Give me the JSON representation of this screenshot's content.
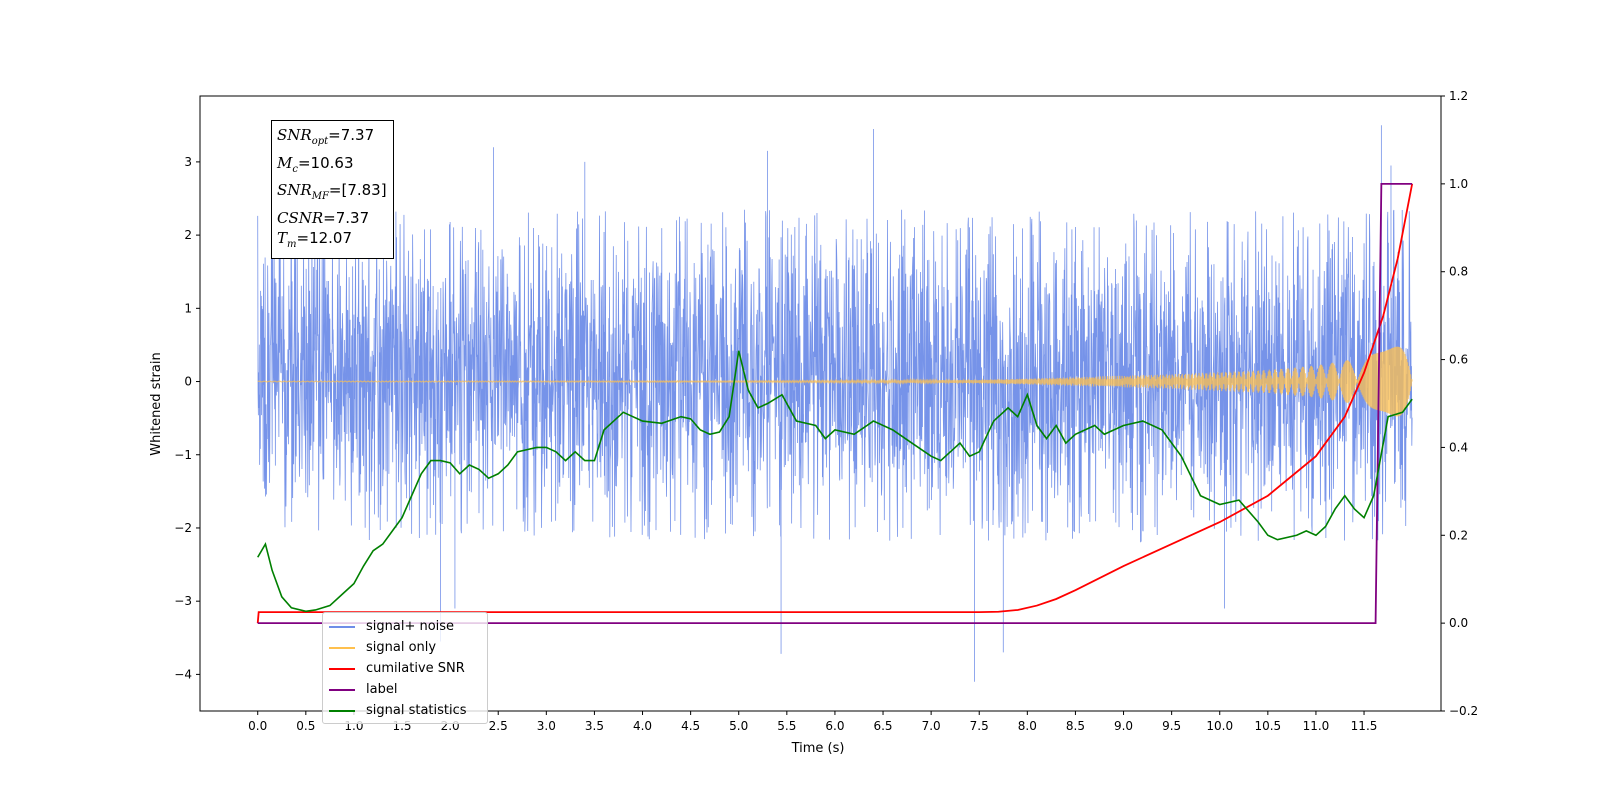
{
  "chart_data": {
    "type": "line",
    "title": "",
    "xlabel": "Time (s)",
    "ylabel": "Whitened strain",
    "xlim": [
      -0.6,
      12.3
    ],
    "ylim": [
      -4.5,
      3.9
    ],
    "ylim_right": [
      -0.2,
      1.2
    ],
    "x_ticks": [
      "0.0",
      "0.5",
      "1.0",
      "1.5",
      "2.0",
      "2.5",
      "3.0",
      "3.5",
      "4.0",
      "4.5",
      "5.0",
      "5.5",
      "6.0",
      "6.5",
      "7.0",
      "7.5",
      "8.0",
      "8.5",
      "9.0",
      "9.5",
      "10.0",
      "10.5",
      "11.0",
      "11.5"
    ],
    "y_ticks_left": [
      "3",
      "2",
      "1",
      "0",
      "−1",
      "−2",
      "−3",
      "−4"
    ],
    "y_ticks_right": [
      "1.2",
      "1.0",
      "0.8",
      "0.6",
      "0.4",
      "0.2",
      "0.0",
      "−0.2"
    ],
    "grid": false,
    "legend_placement": "lower-left",
    "legend": [
      {
        "label": "signal+ noise",
        "color": "#6f8de8"
      },
      {
        "label": "signal only",
        "color": "#ffc04d"
      },
      {
        "label": "cumilative SNR",
        "color": "#ff0000"
      },
      {
        "label": "label",
        "color": "#800080"
      },
      {
        "label": "signal statistics",
        "color": "#008000"
      }
    ],
    "annotation": {
      "snr_opt": "7.37",
      "mc": "10.63",
      "snr_mf": "[7.83]",
      "csnr": "7.37",
      "tm": "12.07"
    },
    "series": [
      {
        "name": "signal+ noise",
        "axis": "left",
        "color": "#6f8de8",
        "description_values": {
          "t_start": 0.0,
          "t_end": 12.0,
          "typical_band": [
            -1.8,
            2.0
          ],
          "spikes": [
            [
              2.45,
              3.2
            ],
            [
              3.4,
              3.0
            ],
            [
              5.3,
              3.15
            ],
            [
              6.4,
              3.45
            ],
            [
              11.68,
              3.5
            ],
            [
              11.78,
              2.95
            ],
            [
              1.9,
              -3.55
            ],
            [
              2.05,
              -3.1
            ],
            [
              5.44,
              -3.72
            ],
            [
              7.45,
              -4.1
            ],
            [
              7.75,
              -3.7
            ],
            [
              10.05,
              -3.1
            ]
          ]
        }
      },
      {
        "name": "signal only",
        "axis": "left",
        "color": "#ffc04d",
        "envelope": [
          [
            0.0,
            0.005
          ],
          [
            5.0,
            0.01
          ],
          [
            7.5,
            0.02
          ],
          [
            8.5,
            0.06
          ],
          [
            9.5,
            0.1
          ],
          [
            10.5,
            0.16
          ],
          [
            11.0,
            0.22
          ],
          [
            11.5,
            0.33
          ],
          [
            12.0,
            0.55
          ]
        ]
      },
      {
        "name": "cumilative SNR",
        "axis": "right",
        "color": "#ff0000",
        "x": [
          0.0,
          0.01,
          1.0,
          3.0,
          5.0,
          7.0,
          7.5,
          7.7,
          7.9,
          8.1,
          8.3,
          8.5,
          9.0,
          9.5,
          10.0,
          10.5,
          11.0,
          11.3,
          11.5,
          11.7,
          11.85,
          12.0
        ],
        "values": [
          0.0,
          0.025,
          0.025,
          0.025,
          0.025,
          0.025,
          0.025,
          0.026,
          0.03,
          0.04,
          0.055,
          0.075,
          0.13,
          0.18,
          0.23,
          0.29,
          0.38,
          0.47,
          0.57,
          0.7,
          0.83,
          1.0
        ]
      },
      {
        "name": "label",
        "axis": "right",
        "color": "#800080",
        "x": [
          0.0,
          11.62,
          11.68,
          12.0
        ],
        "values": [
          0.0,
          0.0,
          1.0,
          1.0
        ]
      },
      {
        "name": "signal statistics",
        "axis": "right",
        "color": "#008000",
        "x": [
          0.0,
          0.08,
          0.15,
          0.25,
          0.35,
          0.5,
          0.6,
          0.75,
          0.9,
          1.0,
          1.1,
          1.2,
          1.3,
          1.4,
          1.5,
          1.6,
          1.7,
          1.8,
          1.9,
          2.0,
          2.1,
          2.2,
          2.3,
          2.4,
          2.5,
          2.6,
          2.7,
          2.8,
          2.9,
          3.0,
          3.1,
          3.2,
          3.3,
          3.4,
          3.5,
          3.6,
          3.7,
          3.8,
          3.9,
          4.0,
          4.2,
          4.4,
          4.5,
          4.6,
          4.7,
          4.8,
          4.9,
          5.0,
          5.1,
          5.2,
          5.3,
          5.45,
          5.6,
          5.7,
          5.8,
          5.9,
          6.0,
          6.2,
          6.4,
          6.6,
          6.8,
          7.0,
          7.1,
          7.2,
          7.3,
          7.4,
          7.5,
          7.65,
          7.8,
          7.9,
          8.0,
          8.1,
          8.2,
          8.3,
          8.4,
          8.5,
          8.6,
          8.7,
          8.8,
          9.0,
          9.2,
          9.4,
          9.6,
          9.8,
          10.0,
          10.2,
          10.4,
          10.5,
          10.6,
          10.8,
          10.9,
          11.0,
          11.1,
          11.2,
          11.3,
          11.4,
          11.5,
          11.6,
          11.75,
          11.9,
          12.0
        ],
        "values": [
          0.15,
          0.18,
          0.12,
          0.06,
          0.035,
          0.027,
          0.03,
          0.04,
          0.07,
          0.09,
          0.13,
          0.165,
          0.18,
          0.21,
          0.24,
          0.29,
          0.34,
          0.37,
          0.37,
          0.365,
          0.34,
          0.36,
          0.35,
          0.33,
          0.34,
          0.36,
          0.39,
          0.395,
          0.4,
          0.4,
          0.39,
          0.37,
          0.39,
          0.37,
          0.37,
          0.44,
          0.46,
          0.48,
          0.47,
          0.46,
          0.455,
          0.47,
          0.465,
          0.44,
          0.43,
          0.435,
          0.47,
          0.62,
          0.53,
          0.49,
          0.5,
          0.52,
          0.46,
          0.455,
          0.45,
          0.42,
          0.44,
          0.43,
          0.46,
          0.44,
          0.41,
          0.38,
          0.37,
          0.39,
          0.41,
          0.38,
          0.39,
          0.46,
          0.49,
          0.47,
          0.52,
          0.45,
          0.42,
          0.45,
          0.41,
          0.43,
          0.44,
          0.45,
          0.43,
          0.45,
          0.46,
          0.44,
          0.38,
          0.29,
          0.27,
          0.28,
          0.23,
          0.2,
          0.19,
          0.2,
          0.21,
          0.2,
          0.22,
          0.26,
          0.29,
          0.26,
          0.24,
          0.29,
          0.47,
          0.48,
          0.51
        ]
      }
    ]
  }
}
